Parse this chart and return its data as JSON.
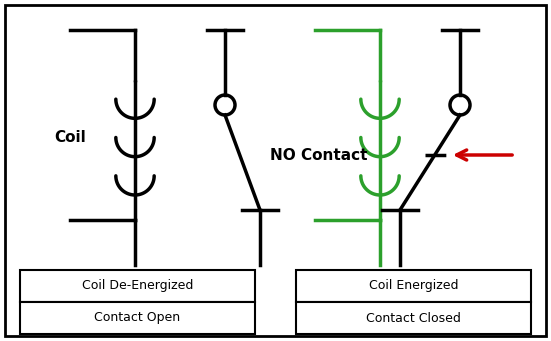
{
  "black": "#000000",
  "green": "#2ca02c",
  "red": "#cc0000",
  "lw": 2.5,
  "box1_top_text": "Coil De-Energized",
  "box1_bot_text": "Contact Open",
  "box2_top_text": "Coil Energized",
  "box2_bot_text": "Contact Closed",
  "label_coil": "Coil",
  "label_no_contact": "NO Contact"
}
